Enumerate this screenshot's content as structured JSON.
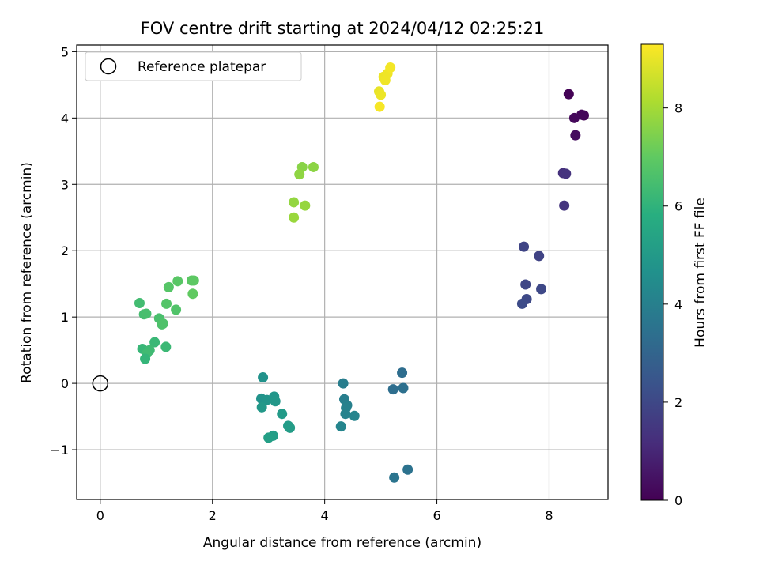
{
  "chart_data": {
    "type": "scatter",
    "title": "FOV centre drift starting at 2024/04/12 02:25:21",
    "xlabel": "Angular distance from reference (arcmin)",
    "ylabel": "Rotation from reference (arcmin)",
    "xlim": [
      -0.42,
      9.05
    ],
    "ylim": [
      -1.75,
      5.1
    ],
    "xticks": [
      0,
      2,
      4,
      6,
      8
    ],
    "yticks": [
      -1,
      0,
      1,
      2,
      3,
      4,
      5
    ],
    "ytick_labels": [
      "−1",
      "0",
      "1",
      "2",
      "3",
      "4",
      "5"
    ],
    "grid": true,
    "legend": {
      "location": "upper-left",
      "entries": [
        "Reference platepar"
      ]
    },
    "colormap": "viridis",
    "colorbar": {
      "label": "Hours from first FF file",
      "range": [
        0,
        9.3
      ],
      "ticks": [
        0,
        2,
        4,
        6,
        8
      ]
    },
    "reference_point": {
      "x": 0,
      "y": 0
    },
    "points": [
      {
        "x": 8.35,
        "y": 4.36,
        "c": 0.05
      },
      {
        "x": 8.62,
        "y": 4.04,
        "c": 0.1
      },
      {
        "x": 8.58,
        "y": 4.05,
        "c": 0.15
      },
      {
        "x": 8.45,
        "y": 4.0,
        "c": 0.2
      },
      {
        "x": 8.47,
        "y": 3.74,
        "c": 0.3
      },
      {
        "x": 8.25,
        "y": 3.17,
        "c": 1.3
      },
      {
        "x": 8.3,
        "y": 3.16,
        "c": 1.35
      },
      {
        "x": 8.27,
        "y": 2.68,
        "c": 1.4
      },
      {
        "x": 7.55,
        "y": 2.06,
        "c": 1.9
      },
      {
        "x": 7.82,
        "y": 1.92,
        "c": 1.85
      },
      {
        "x": 7.58,
        "y": 1.49,
        "c": 1.95
      },
      {
        "x": 7.86,
        "y": 1.42,
        "c": 2.0
      },
      {
        "x": 7.6,
        "y": 1.27,
        "c": 2.05
      },
      {
        "x": 7.52,
        "y": 1.2,
        "c": 2.1
      },
      {
        "x": 5.38,
        "y": 0.16,
        "c": 3.3
      },
      {
        "x": 5.22,
        "y": -0.09,
        "c": 3.35
      },
      {
        "x": 5.4,
        "y": -0.07,
        "c": 3.4
      },
      {
        "x": 5.48,
        "y": -1.3,
        "c": 3.5
      },
      {
        "x": 5.24,
        "y": -1.42,
        "c": 3.55
      },
      {
        "x": 4.33,
        "y": 0.0,
        "c": 3.9
      },
      {
        "x": 4.35,
        "y": -0.24,
        "c": 3.95
      },
      {
        "x": 4.4,
        "y": -0.33,
        "c": 4.0
      },
      {
        "x": 4.38,
        "y": -0.37,
        "c": 4.05
      },
      {
        "x": 4.37,
        "y": -0.46,
        "c": 4.1
      },
      {
        "x": 4.53,
        "y": -0.49,
        "c": 4.15
      },
      {
        "x": 4.29,
        "y": -0.65,
        "c": 4.2
      },
      {
        "x": 2.9,
        "y": 0.09,
        "c": 4.7
      },
      {
        "x": 2.87,
        "y": -0.23,
        "c": 4.75
      },
      {
        "x": 2.97,
        "y": -0.25,
        "c": 4.8
      },
      {
        "x": 3.1,
        "y": -0.2,
        "c": 4.85
      },
      {
        "x": 3.12,
        "y": -0.27,
        "c": 4.9
      },
      {
        "x": 2.88,
        "y": -0.36,
        "c": 4.95
      },
      {
        "x": 3.24,
        "y": -0.46,
        "c": 5.0
      },
      {
        "x": 3.35,
        "y": -0.64,
        "c": 5.05
      },
      {
        "x": 3.38,
        "y": -0.67,
        "c": 5.1
      },
      {
        "x": 3.08,
        "y": -0.79,
        "c": 5.15
      },
      {
        "x": 3.0,
        "y": -0.82,
        "c": 5.2
      },
      {
        "x": 0.7,
        "y": 1.21,
        "c": 6.4
      },
      {
        "x": 0.78,
        "y": 1.04,
        "c": 6.45
      },
      {
        "x": 0.82,
        "y": 1.05,
        "c": 6.5
      },
      {
        "x": 1.05,
        "y": 0.98,
        "c": 6.55
      },
      {
        "x": 1.1,
        "y": 0.89,
        "c": 6.6
      },
      {
        "x": 1.12,
        "y": 0.9,
        "c": 6.65
      },
      {
        "x": 1.35,
        "y": 1.11,
        "c": 6.7
      },
      {
        "x": 1.18,
        "y": 1.2,
        "c": 6.75
      },
      {
        "x": 1.22,
        "y": 1.45,
        "c": 6.8
      },
      {
        "x": 1.38,
        "y": 1.54,
        "c": 6.85
      },
      {
        "x": 1.63,
        "y": 1.55,
        "c": 6.9
      },
      {
        "x": 1.67,
        "y": 1.55,
        "c": 6.95
      },
      {
        "x": 1.65,
        "y": 1.35,
        "c": 7.0
      },
      {
        "x": 0.97,
        "y": 0.62,
        "c": 6.2
      },
      {
        "x": 1.17,
        "y": 0.55,
        "c": 6.25
      },
      {
        "x": 0.75,
        "y": 0.52,
        "c": 6.15
      },
      {
        "x": 0.88,
        "y": 0.5,
        "c": 6.3
      },
      {
        "x": 0.83,
        "y": 0.45,
        "c": 6.35
      },
      {
        "x": 0.8,
        "y": 0.37,
        "c": 6.1
      },
      {
        "x": 3.6,
        "y": 3.26,
        "c": 7.6
      },
      {
        "x": 3.8,
        "y": 3.26,
        "c": 7.65
      },
      {
        "x": 3.55,
        "y": 3.15,
        "c": 7.7
      },
      {
        "x": 3.45,
        "y": 2.73,
        "c": 7.75
      },
      {
        "x": 3.65,
        "y": 2.68,
        "c": 7.8
      },
      {
        "x": 3.45,
        "y": 2.5,
        "c": 7.85
      },
      {
        "x": 4.97,
        "y": 4.4,
        "c": 9.0
      },
      {
        "x": 5.05,
        "y": 4.62,
        "c": 9.05
      },
      {
        "x": 5.12,
        "y": 4.67,
        "c": 9.1
      },
      {
        "x": 5.17,
        "y": 4.76,
        "c": 9.15
      },
      {
        "x": 5.08,
        "y": 4.57,
        "c": 9.1
      },
      {
        "x": 5.0,
        "y": 4.35,
        "c": 9.05
      },
      {
        "x": 4.98,
        "y": 4.17,
        "c": 9.2
      }
    ]
  }
}
